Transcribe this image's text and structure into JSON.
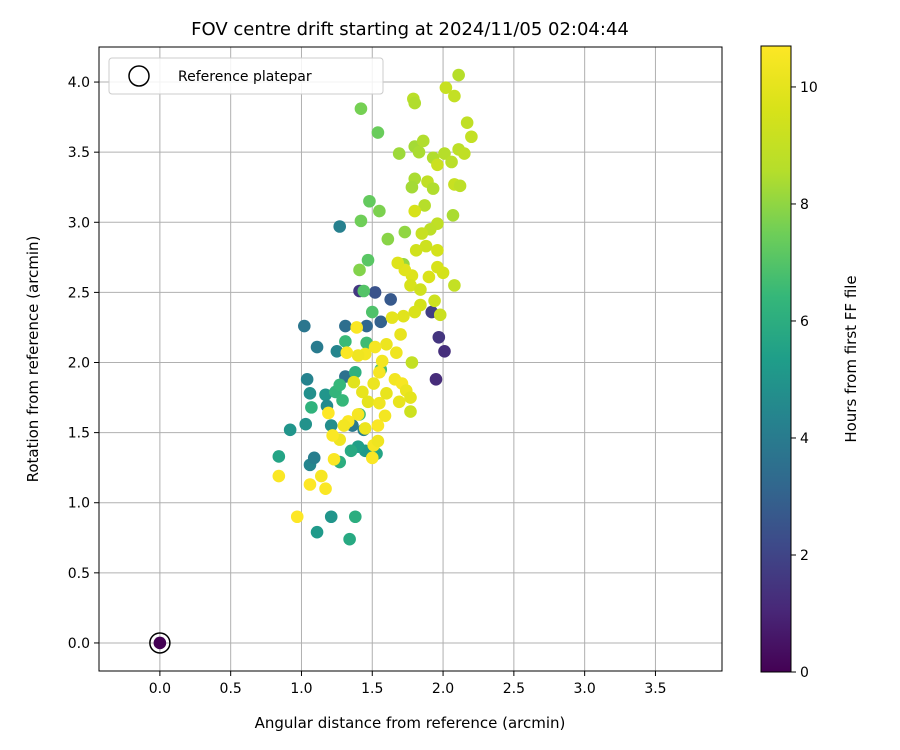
{
  "chart_data": {
    "type": "scatter",
    "title": "FOV centre drift starting at 2024/11/05 02:04:44",
    "xlabel": "Angular distance from reference (arcmin)",
    "ylabel": "Rotation from reference (arcmin)",
    "xlim": [
      -0.43,
      3.97
    ],
    "ylim": [
      -0.2,
      4.25
    ],
    "xticks": [
      0.0,
      0.5,
      1.0,
      1.5,
      2.0,
      2.5,
      3.0,
      3.5
    ],
    "yticks": [
      0.0,
      0.5,
      1.0,
      1.5,
      2.0,
      2.5,
      3.0,
      3.5,
      4.0
    ],
    "x_tick_labels": [
      "0.0",
      "0.5",
      "1.0",
      "1.5",
      "2.0",
      "2.5",
      "3.0",
      "3.5"
    ],
    "y_tick_labels": [
      "0.0",
      "0.5",
      "1.0",
      "1.5",
      "2.0",
      "2.5",
      "3.0",
      "3.5",
      "4.0"
    ],
    "grid": true,
    "legend": {
      "position": "top-left",
      "label": "Reference platepar"
    },
    "reference_point": {
      "x": 0.0,
      "y": 0.0
    },
    "colorbar": {
      "label": "Hours from first FF file",
      "colormap": "viridis",
      "min": 0,
      "max": 10.7,
      "ticks": [
        0,
        2,
        4,
        6,
        8,
        10
      ],
      "tick_labels": [
        "0",
        "2",
        "4",
        "6",
        "8",
        "10"
      ]
    },
    "series": [
      {
        "points": [
          [
            0.0,
            0.0,
            0.0
          ],
          [
            1.95,
            1.88,
            1.2
          ],
          [
            2.01,
            2.08,
            1.3
          ],
          [
            1.97,
            2.18,
            1.5
          ],
          [
            1.92,
            2.36,
            1.8
          ],
          [
            1.41,
            2.51,
            1.6
          ],
          [
            1.52,
            2.5,
            2.5
          ],
          [
            1.63,
            2.45,
            2.7
          ],
          [
            1.56,
            2.29,
            3.0
          ],
          [
            1.46,
            2.26,
            3.2
          ],
          [
            1.31,
            2.26,
            3.5
          ],
          [
            1.02,
            2.26,
            3.8
          ],
          [
            1.11,
            2.11,
            4.0
          ],
          [
            1.27,
            2.97,
            4.2
          ],
          [
            1.25,
            2.08,
            4.4
          ],
          [
            1.31,
            1.9,
            3.6
          ],
          [
            1.04,
            1.88,
            4.3
          ],
          [
            1.06,
            1.78,
            4.8
          ],
          [
            1.17,
            1.77,
            5.0
          ],
          [
            1.18,
            1.69,
            4.6
          ],
          [
            1.21,
            1.55,
            4.7
          ],
          [
            1.03,
            1.56,
            4.9
          ],
          [
            0.92,
            1.52,
            5.0
          ],
          [
            1.06,
            1.27,
            4.4
          ],
          [
            1.09,
            1.32,
            4.1
          ],
          [
            1.36,
            1.55,
            3.9
          ],
          [
            1.44,
            1.52,
            4.2
          ],
          [
            1.45,
            1.37,
            5.2
          ],
          [
            1.4,
            1.4,
            5.4
          ],
          [
            1.53,
            1.35,
            5.6
          ],
          [
            1.35,
            1.37,
            5.8
          ],
          [
            1.27,
            1.29,
            6.0
          ],
          [
            0.84,
            1.33,
            5.6
          ],
          [
            1.11,
            0.79,
            5.2
          ],
          [
            1.21,
            0.9,
            5.0
          ],
          [
            1.34,
            0.74,
            5.8
          ],
          [
            1.38,
            0.9,
            6.0
          ],
          [
            1.07,
            1.68,
            6.2
          ],
          [
            1.24,
            1.79,
            6.3
          ],
          [
            1.27,
            1.84,
            6.4
          ],
          [
            1.38,
            1.93,
            6.1
          ],
          [
            1.31,
            2.15,
            6.5
          ],
          [
            1.46,
            2.14,
            6.6
          ],
          [
            1.5,
            2.36,
            6.9
          ],
          [
            1.44,
            2.51,
            7.0
          ],
          [
            1.56,
            1.95,
            6.8
          ],
          [
            1.41,
            1.63,
            6.6
          ],
          [
            1.29,
            1.73,
            6.4
          ],
          [
            1.47,
            2.73,
            7.1
          ],
          [
            1.48,
            3.15,
            7.3
          ],
          [
            1.54,
            3.64,
            7.4
          ],
          [
            1.42,
            3.81,
            7.6
          ],
          [
            1.42,
            3.01,
            7.5
          ],
          [
            1.55,
            3.08,
            7.7
          ],
          [
            1.41,
            2.66,
            7.8
          ],
          [
            1.61,
            2.88,
            7.9
          ],
          [
            1.73,
            2.93,
            8.0
          ],
          [
            1.72,
            2.7,
            8.1
          ],
          [
            1.69,
            3.49,
            8.2
          ],
          [
            1.8,
            3.54,
            8.3
          ],
          [
            1.83,
            3.5,
            8.4
          ],
          [
            1.86,
            3.58,
            8.5
          ],
          [
            1.93,
            3.46,
            8.5
          ],
          [
            2.01,
            3.49,
            8.6
          ],
          [
            2.06,
            3.43,
            8.7
          ],
          [
            2.11,
            3.52,
            8.8
          ],
          [
            2.15,
            3.49,
            8.9
          ],
          [
            2.08,
            3.9,
            9.0
          ],
          [
            2.02,
            3.96,
            9.1
          ],
          [
            1.96,
            3.41,
            9.2
          ],
          [
            1.79,
            3.88,
            8.7
          ],
          [
            1.8,
            3.85,
            8.5
          ],
          [
            2.11,
            4.05,
            8.6
          ],
          [
            2.17,
            3.71,
            8.9
          ],
          [
            2.2,
            3.61,
            9.0
          ],
          [
            2.08,
            3.27,
            9.1
          ],
          [
            2.12,
            3.26,
            8.8
          ],
          [
            2.07,
            3.05,
            8.4
          ],
          [
            1.89,
            3.29,
            8.9
          ],
          [
            1.87,
            3.12,
            8.6
          ],
          [
            1.8,
            3.31,
            8.4
          ],
          [
            1.78,
            3.25,
            8.3
          ],
          [
            1.93,
            3.24,
            8.5
          ],
          [
            1.96,
            2.99,
            8.9
          ],
          [
            1.91,
            2.95,
            8.8
          ],
          [
            1.85,
            2.92,
            9.1
          ],
          [
            1.8,
            3.08,
            9.6
          ],
          [
            1.88,
            2.83,
            9.3
          ],
          [
            1.81,
            2.8,
            9.4
          ],
          [
            1.96,
            2.8,
            9.5
          ],
          [
            2.0,
            2.64,
            9.5
          ],
          [
            1.96,
            2.68,
            9.6
          ],
          [
            1.9,
            2.61,
            9.7
          ],
          [
            1.78,
            2.62,
            9.8
          ],
          [
            1.73,
            2.66,
            9.9
          ],
          [
            1.68,
            2.71,
            9.8
          ],
          [
            1.77,
            2.55,
            9.6
          ],
          [
            1.84,
            2.52,
            9.4
          ],
          [
            1.94,
            2.44,
            9.3
          ],
          [
            2.08,
            2.55,
            9.0
          ],
          [
            1.98,
            2.34,
            9.2
          ],
          [
            1.84,
            2.41,
            9.5
          ],
          [
            1.8,
            2.36,
            9.7
          ],
          [
            1.72,
            2.33,
            9.9
          ],
          [
            1.64,
            2.32,
            10.0
          ],
          [
            1.7,
            2.2,
            10.1
          ],
          [
            1.6,
            2.13,
            10.2
          ],
          [
            1.67,
            2.07,
            10.3
          ],
          [
            1.57,
            2.01,
            10.4
          ],
          [
            1.52,
            2.11,
            10.5
          ],
          [
            1.45,
            2.06,
            10.4
          ],
          [
            1.4,
            2.05,
            10.3
          ],
          [
            1.32,
            2.07,
            10.6
          ],
          [
            1.39,
            2.25,
            10.6
          ],
          [
            1.55,
            1.93,
            10.5
          ],
          [
            1.51,
            1.85,
            10.2
          ],
          [
            1.43,
            1.79,
            10.1
          ],
          [
            1.37,
            1.86,
            9.9
          ],
          [
            1.47,
            1.72,
            10.0
          ],
          [
            1.55,
            1.71,
            10.3
          ],
          [
            1.6,
            1.78,
            10.1
          ],
          [
            1.66,
            1.88,
            10.4
          ],
          [
            1.71,
            1.85,
            10.5
          ],
          [
            1.74,
            1.8,
            10.2
          ],
          [
            1.77,
            1.75,
            10.0
          ],
          [
            1.69,
            1.72,
            10.1
          ],
          [
            1.59,
            1.62,
            10.4
          ],
          [
            1.54,
            1.55,
            10.6
          ],
          [
            1.51,
            1.41,
            10.5
          ],
          [
            1.54,
            1.44,
            10.3
          ],
          [
            1.5,
            1.32,
            10.6
          ],
          [
            1.45,
            1.53,
            10.2
          ],
          [
            1.4,
            1.63,
            10.5
          ],
          [
            1.33,
            1.58,
            10.6
          ],
          [
            1.3,
            1.55,
            10.4
          ],
          [
            1.27,
            1.45,
            10.3
          ],
          [
            1.22,
            1.48,
            10.6
          ],
          [
            1.19,
            1.64,
            10.7
          ],
          [
            1.23,
            1.31,
            10.6
          ],
          [
            1.14,
            1.19,
            10.5
          ],
          [
            1.17,
            1.1,
            10.6
          ],
          [
            1.06,
            1.13,
            10.7
          ],
          [
            0.84,
            1.19,
            10.6
          ],
          [
            0.97,
            0.9,
            10.7
          ],
          [
            1.78,
            2.0,
            9.0
          ],
          [
            1.77,
            1.65,
            9.3
          ]
        ]
      }
    ]
  }
}
